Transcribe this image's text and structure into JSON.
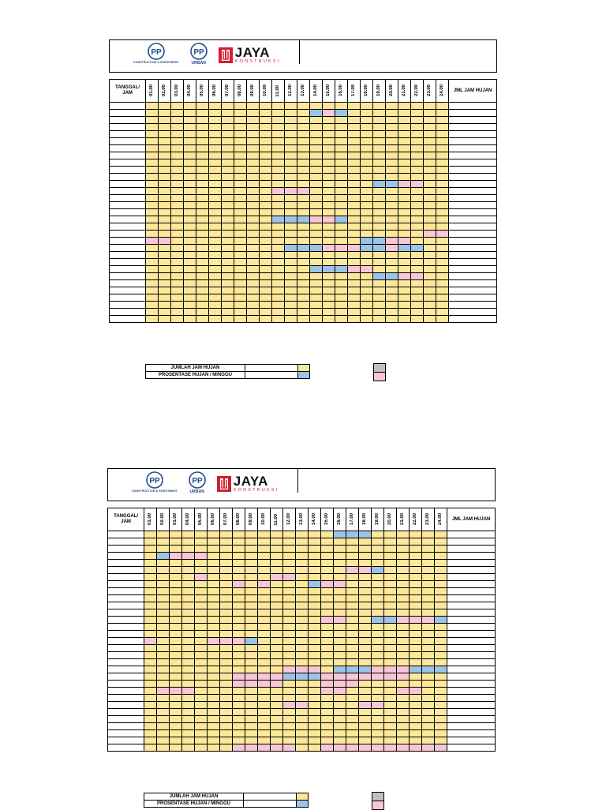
{
  "logos": {
    "pp1_letters": "PP",
    "pp1_sub": "CONSTRUCTION & INVESTMENT",
    "pp2_letters": "PP",
    "pp2_sub": "URBAN",
    "jaya_name": "JAYA",
    "jaya_sub": "KONSTRUKSI"
  },
  "colors": {
    "cell_default": "#fde79a",
    "rain_blue": "#9dc3e6",
    "rain_pink": "#f8c6d4",
    "legend_gray": "#c0c0c0"
  },
  "table": {
    "date_header": "TANGGAL/ JAM",
    "hours": [
      "01.00",
      "02.00",
      "03.00",
      "04.00",
      "05.00",
      "06.00",
      "07.00",
      "08.00",
      "09.00",
      "10.00",
      "11.00",
      "12.00",
      "13.00",
      "14.00",
      "15.00",
      "16.00",
      "17.00",
      "18.00",
      "19.00",
      "20.00",
      "21.00",
      "22.00",
      "23.00",
      "24.00"
    ],
    "total_header": "JML JAM HUJAN",
    "row_count": 31
  },
  "summary": {
    "total_label": "JUMLAH JAM HUJAN",
    "percent_label": "PROSENTASE HUJAN / MINGGU"
  },
  "sheets": [
    {
      "marks": [
        {
          "row": 1,
          "col": 14,
          "color": "blue"
        },
        {
          "row": 1,
          "col": 15,
          "color": "pink"
        },
        {
          "row": 1,
          "col": 16,
          "color": "blue"
        },
        {
          "row": 11,
          "col": 19,
          "color": "blue"
        },
        {
          "row": 11,
          "col": 20,
          "color": "blue"
        },
        {
          "row": 11,
          "col": 21,
          "color": "pink"
        },
        {
          "row": 11,
          "col": 22,
          "color": "pink"
        },
        {
          "row": 12,
          "col": 11,
          "color": "pink"
        },
        {
          "row": 12,
          "col": 12,
          "color": "pink"
        },
        {
          "row": 12,
          "col": 13,
          "color": "pink"
        },
        {
          "row": 16,
          "col": 11,
          "color": "blue"
        },
        {
          "row": 16,
          "col": 12,
          "color": "blue"
        },
        {
          "row": 16,
          "col": 13,
          "color": "blue"
        },
        {
          "row": 16,
          "col": 14,
          "color": "pink"
        },
        {
          "row": 16,
          "col": 15,
          "color": "pink"
        },
        {
          "row": 16,
          "col": 16,
          "color": "blue"
        },
        {
          "row": 18,
          "col": 23,
          "color": "pink"
        },
        {
          "row": 18,
          "col": 24,
          "color": "pink"
        },
        {
          "row": 19,
          "col": 1,
          "color": "pink"
        },
        {
          "row": 19,
          "col": 2,
          "color": "pink"
        },
        {
          "row": 19,
          "col": 18,
          "color": "blue"
        },
        {
          "row": 19,
          "col": 19,
          "color": "blue"
        },
        {
          "row": 19,
          "col": 20,
          "color": "pink"
        },
        {
          "row": 19,
          "col": 21,
          "color": "pink"
        },
        {
          "row": 20,
          "col": 12,
          "color": "blue"
        },
        {
          "row": 20,
          "col": 13,
          "color": "blue"
        },
        {
          "row": 20,
          "col": 14,
          "color": "blue"
        },
        {
          "row": 20,
          "col": 15,
          "color": "pink"
        },
        {
          "row": 20,
          "col": 16,
          "color": "pink"
        },
        {
          "row": 20,
          "col": 17,
          "color": "pink"
        },
        {
          "row": 20,
          "col": 18,
          "color": "blue"
        },
        {
          "row": 20,
          "col": 19,
          "color": "blue"
        },
        {
          "row": 20,
          "col": 20,
          "color": "pink"
        },
        {
          "row": 20,
          "col": 21,
          "color": "blue"
        },
        {
          "row": 20,
          "col": 22,
          "color": "blue"
        },
        {
          "row": 23,
          "col": 14,
          "color": "blue"
        },
        {
          "row": 23,
          "col": 15,
          "color": "blue"
        },
        {
          "row": 23,
          "col": 16,
          "color": "blue"
        },
        {
          "row": 23,
          "col": 17,
          "color": "pink"
        },
        {
          "row": 23,
          "col": 18,
          "color": "pink"
        },
        {
          "row": 24,
          "col": 19,
          "color": "blue"
        },
        {
          "row": 24,
          "col": 20,
          "color": "blue"
        },
        {
          "row": 24,
          "col": 21,
          "color": "pink"
        },
        {
          "row": 24,
          "col": 22,
          "color": "pink"
        }
      ]
    },
    {
      "marks": [
        {
          "row": 0,
          "col": 16,
          "color": "blue"
        },
        {
          "row": 0,
          "col": 17,
          "color": "blue"
        },
        {
          "row": 0,
          "col": 18,
          "color": "blue"
        },
        {
          "row": 3,
          "col": 2,
          "color": "blue"
        },
        {
          "row": 3,
          "col": 3,
          "color": "pink"
        },
        {
          "row": 3,
          "col": 4,
          "color": "pink"
        },
        {
          "row": 3,
          "col": 5,
          "color": "pink"
        },
        {
          "row": 5,
          "col": 17,
          "color": "pink"
        },
        {
          "row": 5,
          "col": 18,
          "color": "pink"
        },
        {
          "row": 5,
          "col": 19,
          "color": "blue"
        },
        {
          "row": 6,
          "col": 5,
          "color": "pink"
        },
        {
          "row": 6,
          "col": 11,
          "color": "pink"
        },
        {
          "row": 6,
          "col": 12,
          "color": "pink"
        },
        {
          "row": 7,
          "col": 8,
          "color": "pink"
        },
        {
          "row": 7,
          "col": 10,
          "color": "pink"
        },
        {
          "row": 7,
          "col": 14,
          "color": "blue"
        },
        {
          "row": 7,
          "col": 15,
          "color": "pink"
        },
        {
          "row": 7,
          "col": 16,
          "color": "pink"
        },
        {
          "row": 12,
          "col": 15,
          "color": "pink"
        },
        {
          "row": 12,
          "col": 16,
          "color": "pink"
        },
        {
          "row": 12,
          "col": 19,
          "color": "blue"
        },
        {
          "row": 12,
          "col": 20,
          "color": "blue"
        },
        {
          "row": 12,
          "col": 21,
          "color": "pink"
        },
        {
          "row": 12,
          "col": 22,
          "color": "pink"
        },
        {
          "row": 12,
          "col": 23,
          "color": "pink"
        },
        {
          "row": 12,
          "col": 24,
          "color": "blue"
        },
        {
          "row": 15,
          "col": 1,
          "color": "pink"
        },
        {
          "row": 15,
          "col": 6,
          "color": "pink"
        },
        {
          "row": 15,
          "col": 7,
          "color": "pink"
        },
        {
          "row": 15,
          "col": 8,
          "color": "pink"
        },
        {
          "row": 15,
          "col": 9,
          "color": "blue"
        },
        {
          "row": 19,
          "col": 12,
          "color": "pink"
        },
        {
          "row": 19,
          "col": 13,
          "color": "pink"
        },
        {
          "row": 19,
          "col": 14,
          "color": "pink"
        },
        {
          "row": 19,
          "col": 16,
          "color": "blue"
        },
        {
          "row": 19,
          "col": 17,
          "color": "blue"
        },
        {
          "row": 19,
          "col": 18,
          "color": "blue"
        },
        {
          "row": 19,
          "col": 19,
          "color": "pink"
        },
        {
          "row": 19,
          "col": 20,
          "color": "pink"
        },
        {
          "row": 19,
          "col": 21,
          "color": "pink"
        },
        {
          "row": 19,
          "col": 22,
          "color": "blue"
        },
        {
          "row": 19,
          "col": 23,
          "color": "blue"
        },
        {
          "row": 19,
          "col": 24,
          "color": "blue"
        },
        {
          "row": 20,
          "col": 8,
          "color": "pink"
        },
        {
          "row": 20,
          "col": 9,
          "color": "pink"
        },
        {
          "row": 20,
          "col": 10,
          "color": "pink"
        },
        {
          "row": 20,
          "col": 11,
          "color": "pink"
        },
        {
          "row": 20,
          "col": 12,
          "color": "blue"
        },
        {
          "row": 20,
          "col": 13,
          "color": "blue"
        },
        {
          "row": 20,
          "col": 14,
          "color": "blue"
        },
        {
          "row": 20,
          "col": 15,
          "color": "pink"
        },
        {
          "row": 20,
          "col": 16,
          "color": "pink"
        },
        {
          "row": 20,
          "col": 17,
          "color": "pink"
        },
        {
          "row": 20,
          "col": 18,
          "color": "pink"
        },
        {
          "row": 20,
          "col": 19,
          "color": "pink"
        },
        {
          "row": 20,
          "col": 20,
          "color": "pink"
        },
        {
          "row": 20,
          "col": 21,
          "color": "pink"
        },
        {
          "row": 21,
          "col": 8,
          "color": "pink"
        },
        {
          "row": 21,
          "col": 9,
          "color": "pink"
        },
        {
          "row": 21,
          "col": 10,
          "color": "pink"
        },
        {
          "row": 21,
          "col": 11,
          "color": "pink"
        },
        {
          "row": 21,
          "col": 15,
          "color": "pink"
        },
        {
          "row": 21,
          "col": 16,
          "color": "pink"
        },
        {
          "row": 21,
          "col": 17,
          "color": "pink"
        },
        {
          "row": 22,
          "col": 2,
          "color": "pink"
        },
        {
          "row": 22,
          "col": 3,
          "color": "pink"
        },
        {
          "row": 22,
          "col": 4,
          "color": "pink"
        },
        {
          "row": 22,
          "col": 15,
          "color": "pink"
        },
        {
          "row": 22,
          "col": 16,
          "color": "pink"
        },
        {
          "row": 22,
          "col": 21,
          "color": "pink"
        },
        {
          "row": 22,
          "col": 22,
          "color": "pink"
        },
        {
          "row": 24,
          "col": 12,
          "color": "pink"
        },
        {
          "row": 24,
          "col": 13,
          "color": "pink"
        },
        {
          "row": 24,
          "col": 18,
          "color": "pink"
        },
        {
          "row": 24,
          "col": 19,
          "color": "pink"
        },
        {
          "row": 30,
          "col": 8,
          "color": "pink"
        },
        {
          "row": 30,
          "col": 9,
          "color": "pink"
        },
        {
          "row": 30,
          "col": 10,
          "color": "pink"
        },
        {
          "row": 30,
          "col": 11,
          "color": "pink"
        },
        {
          "row": 30,
          "col": 12,
          "color": "pink"
        },
        {
          "row": 30,
          "col": 15,
          "color": "pink"
        },
        {
          "row": 30,
          "col": 16,
          "color": "pink"
        },
        {
          "row": 30,
          "col": 17,
          "color": "pink"
        },
        {
          "row": 30,
          "col": 18,
          "color": "pink"
        },
        {
          "row": 30,
          "col": 19,
          "color": "pink"
        },
        {
          "row": 30,
          "col": 20,
          "color": "pink"
        },
        {
          "row": 30,
          "col": 21,
          "color": "pink"
        },
        {
          "row": 30,
          "col": 22,
          "color": "pink"
        },
        {
          "row": 30,
          "col": 23,
          "color": "pink"
        },
        {
          "row": 30,
          "col": 24,
          "color": "pink"
        }
      ]
    }
  ]
}
